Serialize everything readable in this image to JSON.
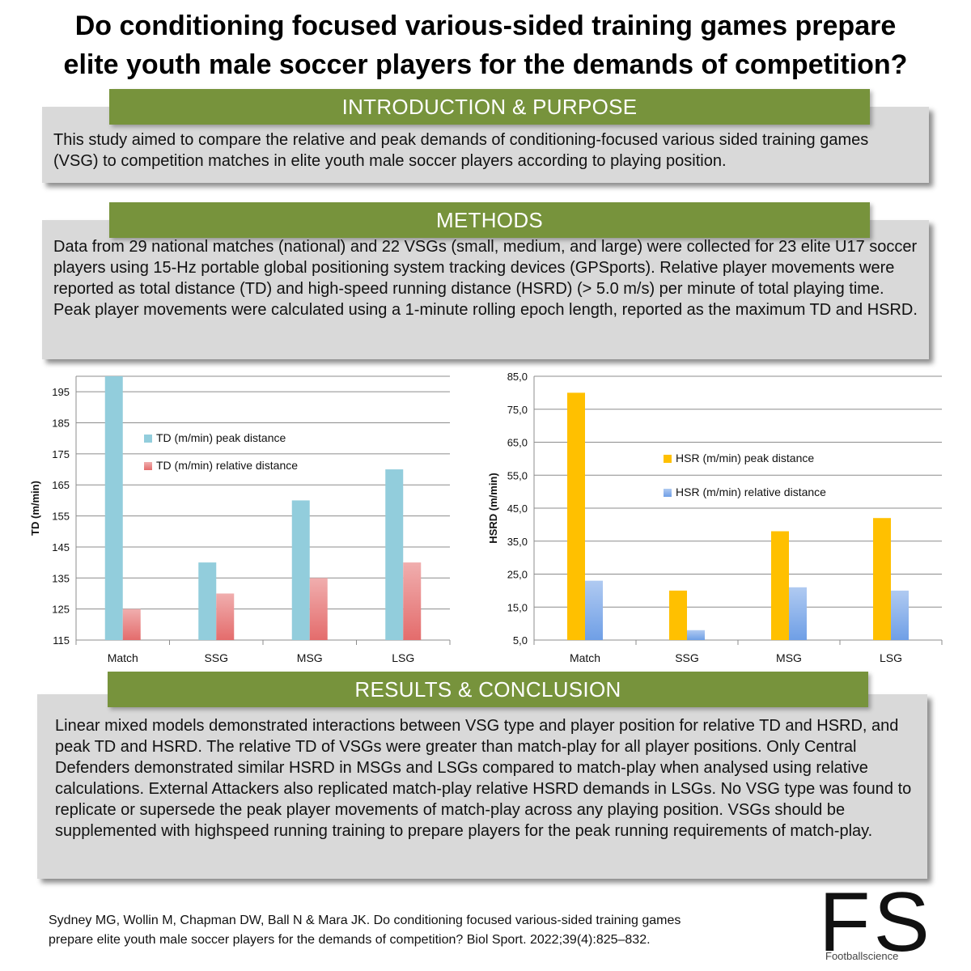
{
  "title": {
    "line1": "Do conditioning focused various-sided training games prepare",
    "line2": "elite youth male soccer players for the demands of competition?"
  },
  "sections": {
    "intro": {
      "heading": "INTRODUCTION & PURPOSE",
      "text": "This study aimed to compare the relative and peak demands of conditioning-focused various sided training games (VSG) to competition matches in elite youth male soccer players according to playing position."
    },
    "methods": {
      "heading": "METHODS",
      "text": "Data from 29 national matches (national) and 22 VSGs (small, medium, and large) were collected for 23 elite U17 soccer players using 15-Hz portable global positioning system tracking devices (GPSports). Relative player movements were reported as total distance (TD) and high-speed running distance (HSRD) (> 5.0 m/s) per minute of total playing time. Peak player movements were calculated using a 1-minute rolling epoch length, reported as the maximum TD and HSRD."
    },
    "results": {
      "heading": "RESULTS & CONCLUSION",
      "text": "Linear mixed models demonstrated interactions between VSG type and player position for relative TD and HSRD, and peak TD and HSRD. The relative TD of VSGs were greater than match-play for all player positions. Only Central Defenders demonstrated similar HSRD in MSGs and LSGs compared to match-play when analysed using relative calculations. External Attackers also replicated match-play relative HSRD demands in LSGs. No VSG type was found to replicate or supersede the peak player movements of match-play across any playing position. VSGs should be supplemented with highspeed running training to prepare players for the peak running requirements of match-play."
    }
  },
  "chart_data": [
    {
      "type": "bar",
      "title": "",
      "categories": [
        "Match",
        "SSG",
        "MSG",
        "LSG"
      ],
      "series": [
        {
          "name": "TD (m/min) peak distance",
          "values": [
            200,
            140,
            160,
            170
          ],
          "color": "#92cddc"
        },
        {
          "name": "TD (m/min) relative distance",
          "values": [
            125,
            130,
            135,
            140
          ],
          "color": "#e46c6c"
        }
      ],
      "xlabel": "",
      "ylabel": "TD (m/min)",
      "ylim": [
        115,
        200
      ],
      "yticks": [
        115,
        125,
        135,
        145,
        155,
        165,
        175,
        185,
        195
      ],
      "ytick_labels": [
        "115",
        "125",
        "135",
        "145",
        "155",
        "165",
        "175",
        "185",
        "195"
      ],
      "grid": true,
      "legend": "top-center"
    },
    {
      "type": "bar",
      "title": "",
      "categories": [
        "Match",
        "SSG",
        "MSG",
        "LSG"
      ],
      "series": [
        {
          "name": "HSR (m/min) peak distance",
          "values": [
            80,
            20,
            38,
            42
          ],
          "color": "#ffc000"
        },
        {
          "name": "HSR (m/min) relative distance",
          "values": [
            23,
            8,
            21,
            20
          ],
          "color": "#6f9fe6"
        }
      ],
      "xlabel": "",
      "ylabel": "HSRD (m/min)",
      "ylim": [
        5,
        85
      ],
      "yticks": [
        5,
        15,
        25,
        35,
        45,
        55,
        65,
        75,
        85
      ],
      "ytick_labels": [
        "5,0",
        "15,0",
        "25,0",
        "35,0",
        "45,0",
        "55,0",
        "65,0",
        "75,0",
        "85,0"
      ],
      "grid": true,
      "legend": "top-center"
    }
  ],
  "citation": {
    "line1": "Sydney MG, Wollin M, Chapman DW, Ball N & Mara JK. Do conditioning focused various-sided training games",
    "line2": "prepare elite youth male soccer players for the demands of competition? Biol Sport. 2022;39(4):825–832."
  },
  "logo": {
    "letters": "FS",
    "subtitle": "Footballscience"
  }
}
